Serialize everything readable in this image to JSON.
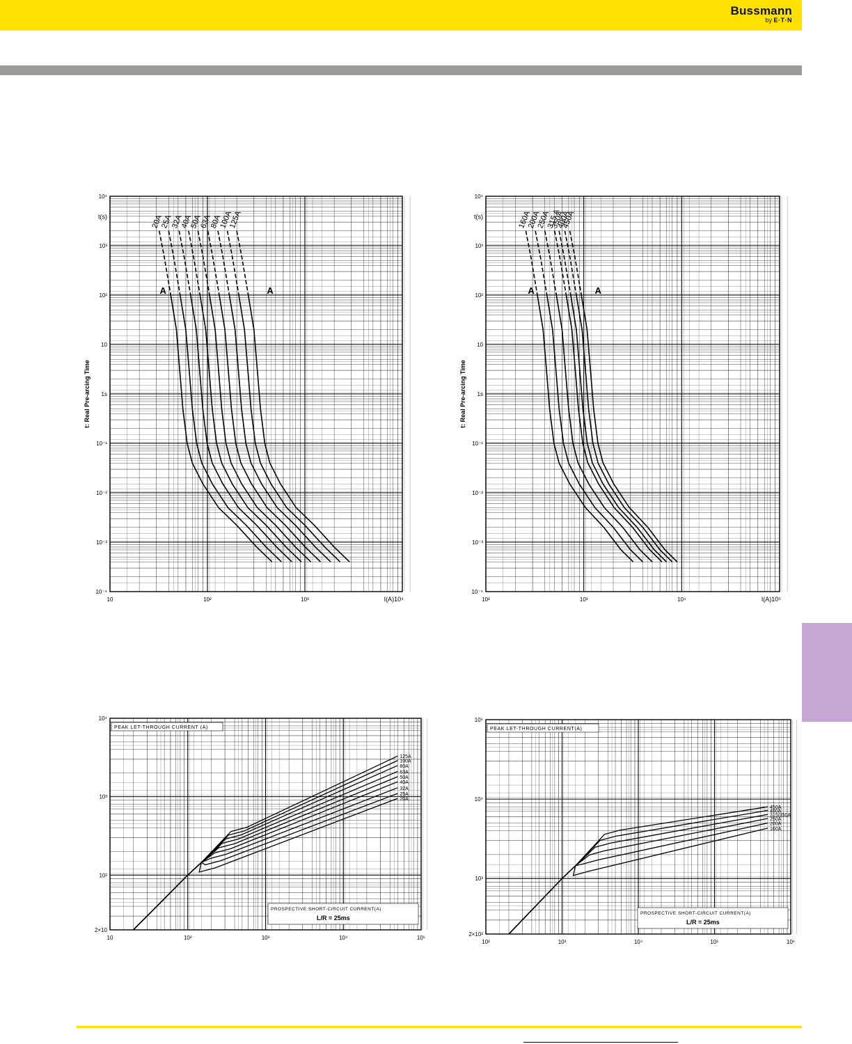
{
  "brand": {
    "name": "Bussmann",
    "sub_prefix": "by",
    "sub_logo": "E·T·N",
    "colors": {
      "header": "#ffe100",
      "bar": "#9a9a96",
      "tab": "#c7a6d2"
    }
  },
  "chart_data": [
    {
      "id": "tc1",
      "type": "line",
      "scale": "log-log",
      "ylabel": "t: Real Pre-arcing Time",
      "yunit": "t(s)",
      "xunit": "I(A)",
      "xlim": [
        10,
        10000
      ],
      "ylim": [
        0.0001,
        10000
      ],
      "x_ticks": [
        "10",
        "10²",
        "10³",
        "10⁴"
      ],
      "y_ticks": [
        "10⁻⁴",
        "10⁻³",
        "10⁻²",
        "10⁻¹",
        "1s",
        "10",
        "10²",
        "10³",
        "10⁴"
      ],
      "markers": [
        {
          "label": "A",
          "x": 35,
          "y": 100
        },
        {
          "label": "A",
          "x": 440,
          "y": 100
        }
      ],
      "grid": true,
      "series": [
        {
          "name": "20A",
          "rating": 20
        },
        {
          "name": "25A",
          "rating": 25
        },
        {
          "name": "32A",
          "rating": 32
        },
        {
          "name": "40A",
          "rating": 40
        },
        {
          "name": "50A",
          "rating": 50
        },
        {
          "name": "63A",
          "rating": 63
        },
        {
          "name": "80A",
          "rating": 80
        },
        {
          "name": "100A",
          "rating": 100
        },
        {
          "name": "125A",
          "rating": 125
        }
      ]
    },
    {
      "id": "tc2",
      "type": "line",
      "scale": "log-log",
      "ylabel": "t: Real Pre-arcing Time",
      "yunit": "t(s)",
      "xunit": "I(A)",
      "xlim": [
        100,
        100000
      ],
      "ylim": [
        0.0001,
        10000
      ],
      "x_ticks": [
        "10²",
        "10³",
        "10⁴",
        "10⁵"
      ],
      "y_ticks": [
        "10⁻⁴",
        "10⁻³",
        "10⁻²",
        "10⁻¹",
        "1s",
        "10",
        "10²",
        "10³",
        "10⁴"
      ],
      "markers": [
        {
          "label": "A",
          "x": 290,
          "y": 100
        },
        {
          "label": "A",
          "x": 1400,
          "y": 100
        }
      ],
      "grid": true,
      "series": [
        {
          "name": "160A",
          "rating": 160
        },
        {
          "name": "200A",
          "rating": 200
        },
        {
          "name": "250A",
          "rating": 250
        },
        {
          "name": "315 A",
          "rating": 315
        },
        {
          "name": "350A",
          "rating": 350
        },
        {
          "name": "400A",
          "rating": 400
        },
        {
          "name": "450A",
          "rating": 450
        }
      ]
    },
    {
      "id": "lt1",
      "type": "line",
      "scale": "log-log",
      "title": "PEAK LET-THROUGH CURRENT (A)",
      "xlabel": "PROSPECTIVE SHORT-CIRCUIT CURRENT(A)",
      "note": "L/R = 25ms",
      "xlim": [
        10,
        100000
      ],
      "ylim": [
        20,
        10000
      ],
      "x_ticks": [
        "10",
        "10²",
        "10³",
        "10⁴",
        "10⁵"
      ],
      "y_ticks": [
        "2×10",
        "10²",
        "10³",
        "10⁴"
      ],
      "grid": true,
      "series": [
        {
          "name": "125A",
          "end": 3300
        },
        {
          "name": "100A",
          "end": 2900
        },
        {
          "name": "80A",
          "end": 2500
        },
        {
          "name": "63A",
          "end": 2100
        },
        {
          "name": "50A",
          "end": 1800
        },
        {
          "name": "40A",
          "end": 1550
        },
        {
          "name": "32A",
          "end": 1300
        },
        {
          "name": "25A",
          "end": 1100
        },
        {
          "name": "20A",
          "end": 950
        }
      ]
    },
    {
      "id": "lt2",
      "type": "line",
      "scale": "log-log",
      "title": "PEAK LET-THROUGH CURRENT(A)",
      "xlabel": "PROSPECTIVE SHORT-CIRCUIT CURRENT(A)",
      "note": "L/R = 25ms",
      "xlim": [
        100,
        1000000
      ],
      "ylim": [
        200,
        100000
      ],
      "x_ticks": [
        "10²",
        "10³",
        "10⁴",
        "10⁵",
        "10⁶"
      ],
      "y_ticks": [
        "2×10²",
        "10³",
        "10⁴",
        "10⁵"
      ],
      "grid": true,
      "series": [
        {
          "name": "450A",
          "end": 8000
        },
        {
          "name": "400A",
          "end": 7200
        },
        {
          "name": "315/350A",
          "end": 6400
        },
        {
          "name": "250A",
          "end": 5700
        },
        {
          "name": "200A",
          "end": 5000
        },
        {
          "name": "160A",
          "end": 4300
        }
      ]
    }
  ]
}
